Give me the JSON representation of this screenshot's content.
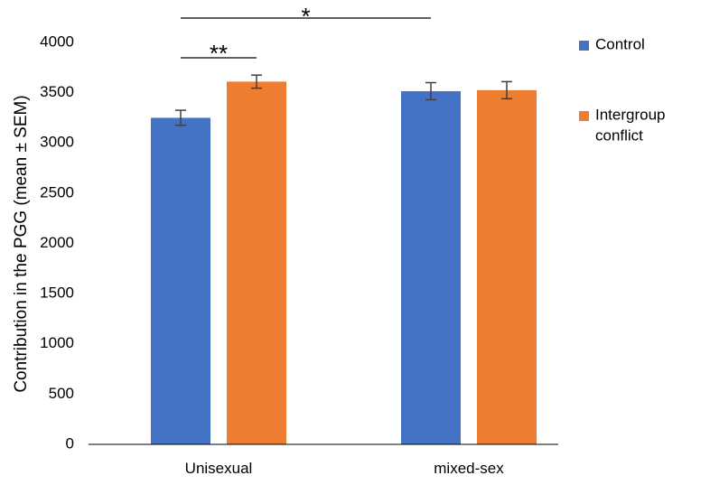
{
  "chart_data": {
    "type": "bar",
    "title": "",
    "xlabel": "",
    "ylabel": "Contribution in the PGG (mean ± SEM)",
    "ylim": [
      0,
      4000
    ],
    "yticks": [
      "0",
      "500",
      "1000",
      "1500",
      "2000",
      "2500",
      "3000",
      "3500",
      "4000"
    ],
    "categories": [
      "Unisexual",
      "mixed-sex"
    ],
    "series": [
      {
        "name": "Control",
        "color": "#4472C4",
        "values": [
          3250,
          3515
        ],
        "errors": [
          75,
          85
        ]
      },
      {
        "name": "Intergroup conflict",
        "legend_lines": [
          "Intergroup",
          "conflict"
        ],
        "color": "#ED7D31",
        "values": [
          3610,
          3525
        ],
        "errors": [
          65,
          85
        ]
      }
    ],
    "grid": false,
    "legend_position": "top-right",
    "significance": [
      {
        "label": "**",
        "from_category": 0,
        "from_series": 0,
        "to_category": 0,
        "to_series": 1
      },
      {
        "label": "*",
        "from_category": 0,
        "from_series": 0,
        "to_category": 1,
        "to_series": 0
      }
    ]
  }
}
